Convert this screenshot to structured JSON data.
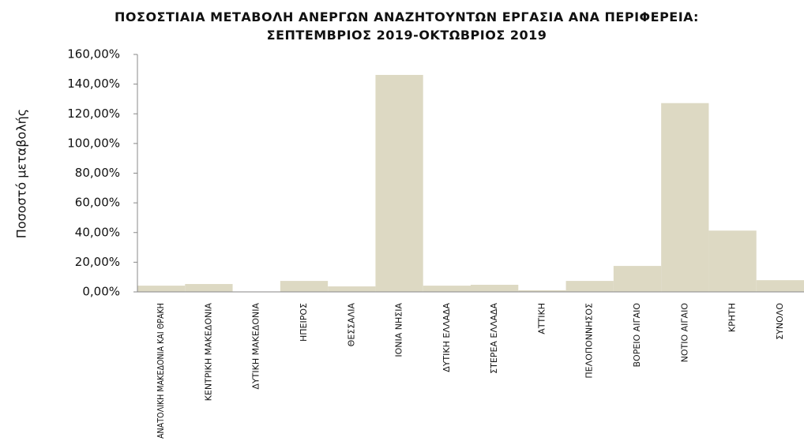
{
  "chart_data": {
    "type": "bar",
    "title": "ΠΟΣΟΣΤΙΑΙΑ ΜΕΤΑΒΟΛΗ ΑΝΕΡΓΩΝ ΑΝΑΖΗΤΟΥΝΤΩΝ ΕΡΓΑΣΙΑ ΑΝΑ ΠΕΡΙΦΕΡΕΙΑ: ΣΕΠΤΕΜΒΡΙΟΣ 2019-ΟΚΤΩΒΡΙΟΣ 2019",
    "y_label": "Ποσοστό μεταβολής",
    "categories": [
      "ΑΝΑΤΟΛΙΚΗ ΜΑΚΕΔΟΝΙΑ ΚΑΙ ΘΡΑΚΗ",
      "ΚΕΝΤΡΙΚΗ ΜΑΚΕΔΟΝΙΑ",
      "ΔΥΤΙΚΗ ΜΑΚΕΔΟΝΙΑ",
      "ΗΠΕΙΡΟΣ",
      "ΘΕΣΣΑΛΙΑ",
      "ΙΟΝΙΑ ΝΗΣΙΑ",
      "ΔΥΤΙΚΗ ΕΛΛΑΔΑ",
      "ΣΤΕΡΕΑ ΕΛΛΑΔΑ",
      "ΑΤΤΙΚΗ",
      "ΠΕΛΟΠΟΝΝΗΣΟΣ",
      "ΒΟΡΕΙΟ ΑΙΓΑΙΟ",
      "ΝΟΤΙΟ ΑΙΓΑΙΟ",
      "ΚΡΗΤΗ",
      "ΣΥΝΟΛΟ"
    ],
    "values": [
      4.2,
      5.3,
      0.3,
      7.4,
      3.7,
      146.2,
      4.2,
      4.8,
      1.1,
      7.4,
      17.5,
      127.2,
      41.3,
      7.9
    ],
    "color": "#ddd9c3",
    "ylim": [
      0,
      160
    ],
    "yticks": [
      {
        "value": 0,
        "label": "0,00%"
      },
      {
        "value": 20,
        "label": "20,00%"
      },
      {
        "value": 40,
        "label": "40,00%"
      },
      {
        "value": 60,
        "label": "60,00%"
      },
      {
        "value": 80,
        "label": "80,00%"
      },
      {
        "value": 100,
        "label": "100,00%"
      },
      {
        "value": 120,
        "label": "120,00%"
      },
      {
        "value": 140,
        "label": "140,00%"
      },
      {
        "value": 160,
        "label": "160,00%"
      }
    ],
    "grid": false
  }
}
